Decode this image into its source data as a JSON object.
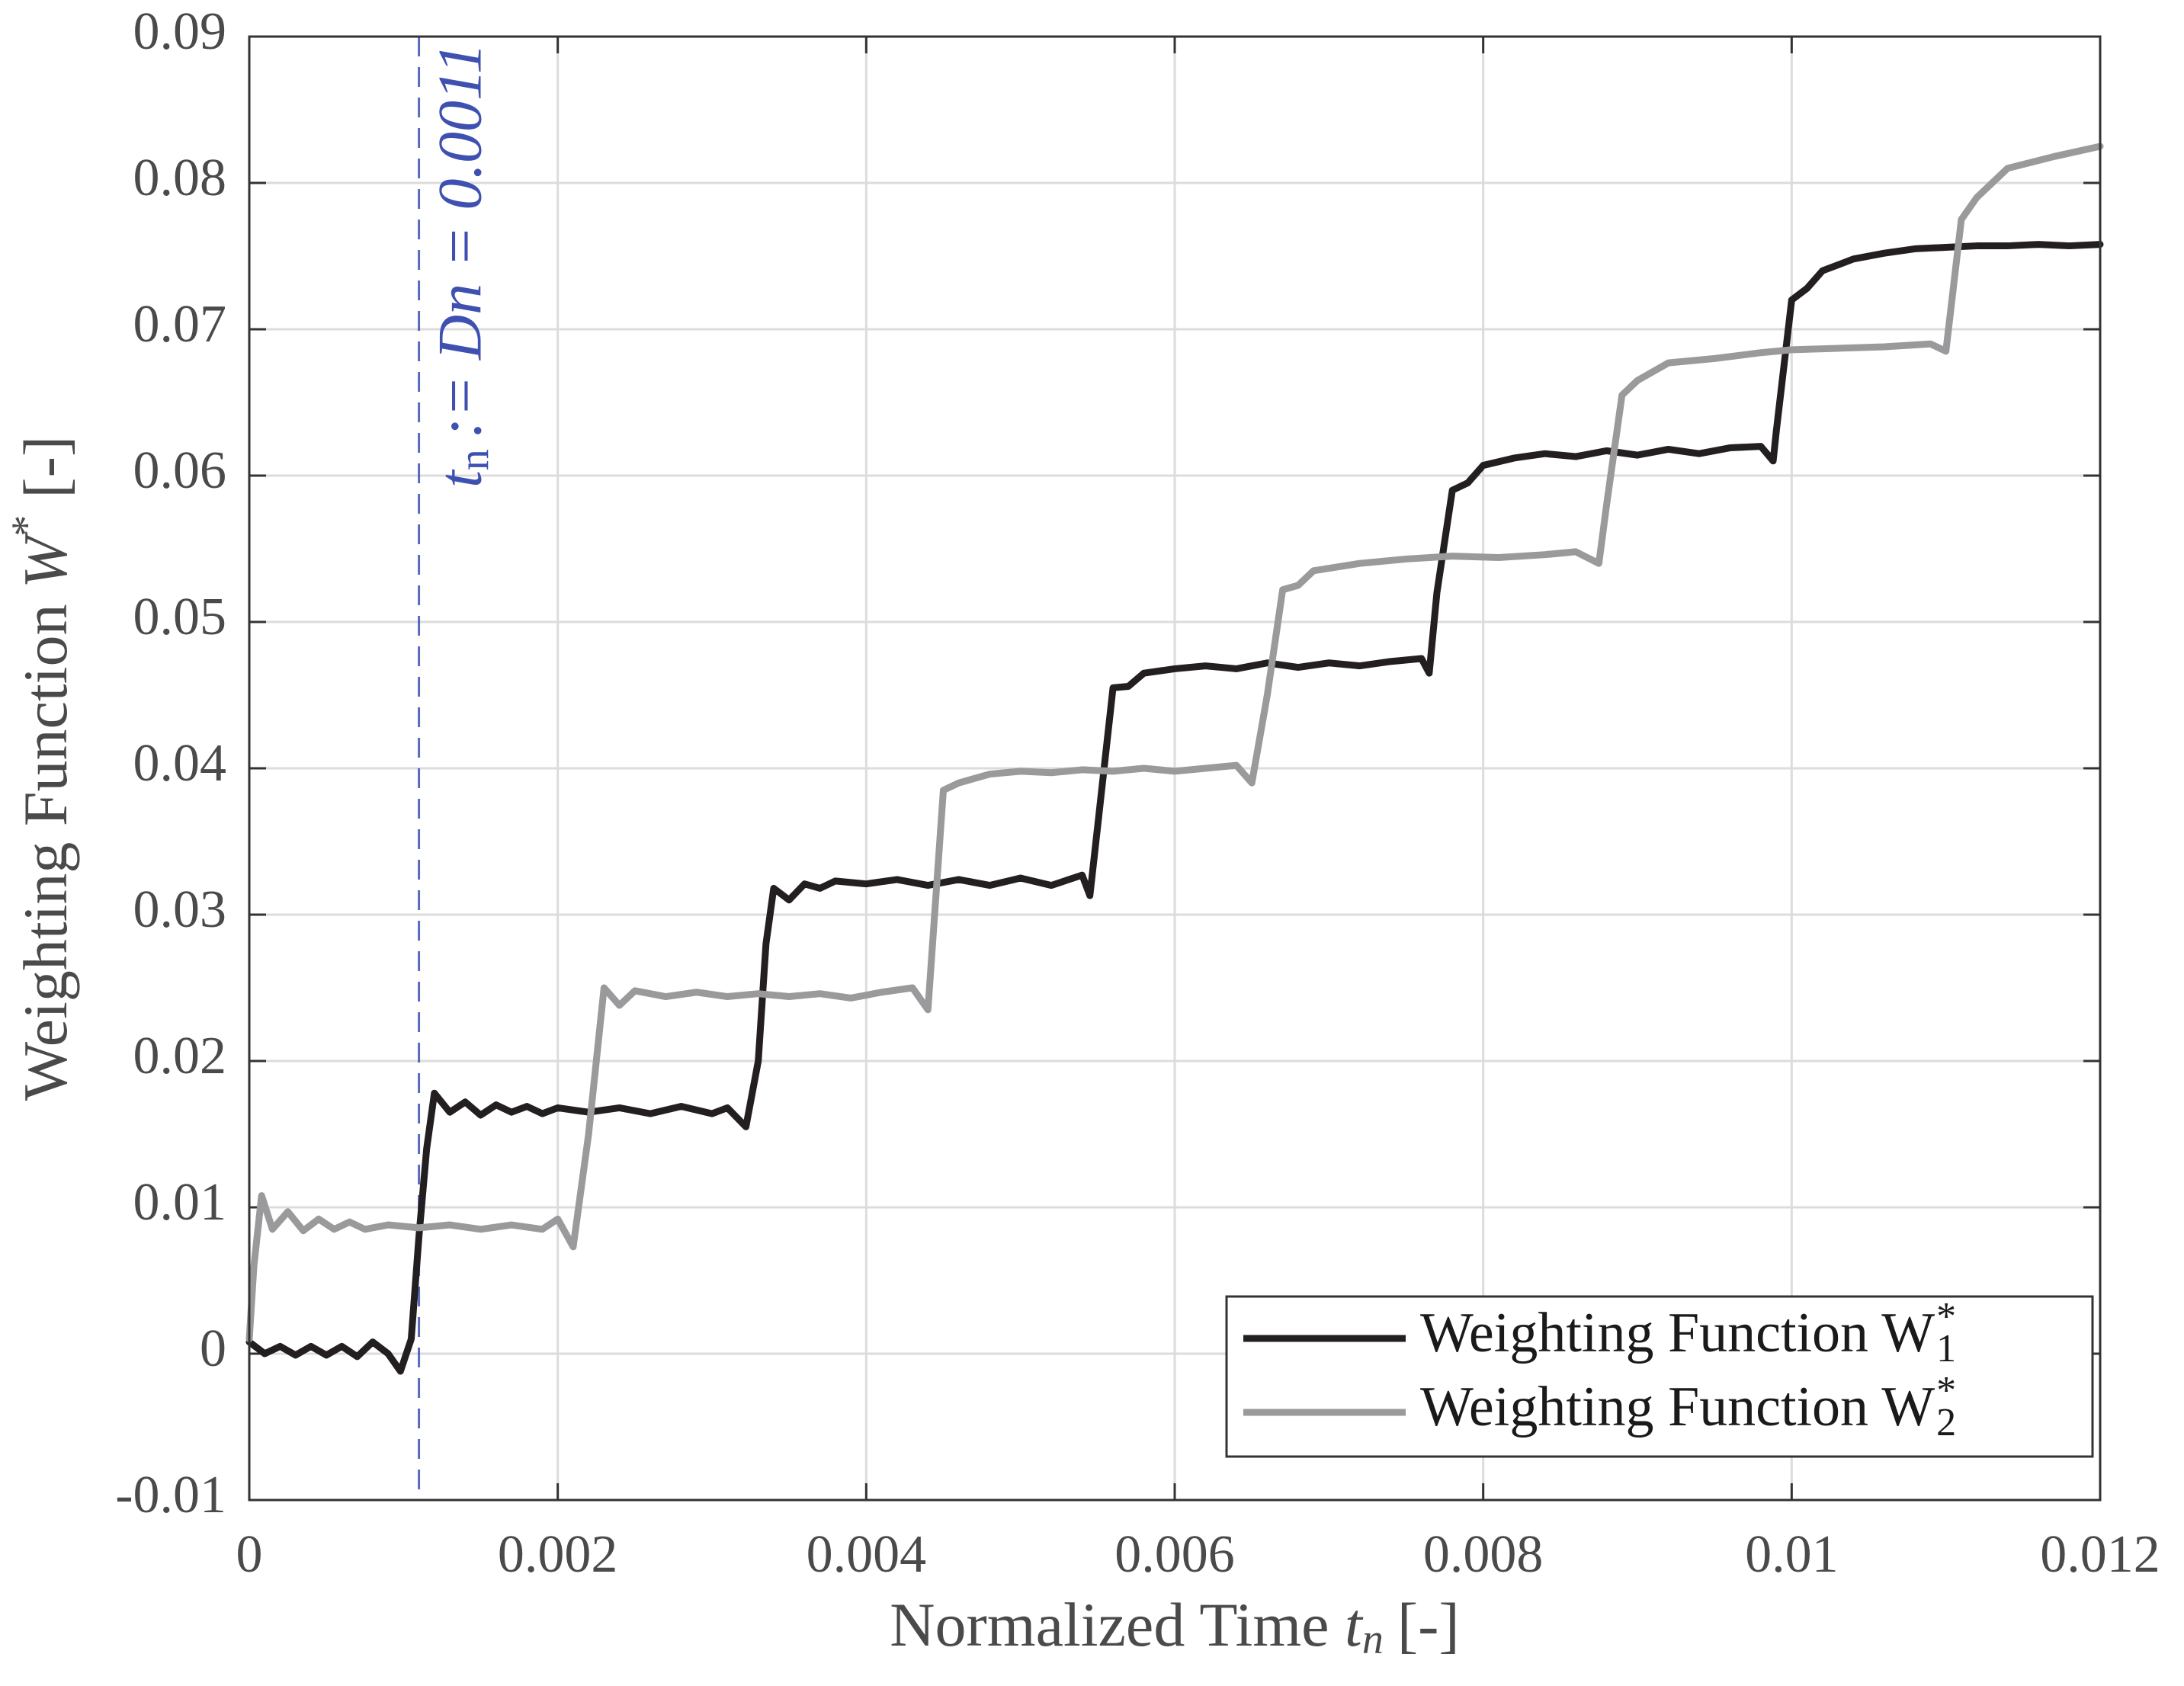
{
  "chart_data": {
    "type": "line",
    "xlabel": "Normalized Time",
    "xlabel_symbol": "t",
    "xlabel_sub": "n",
    "xlabel_unit": "[-]",
    "ylabel": "Weighting Function",
    "ylabel_symbol": "W",
    "ylabel_sup": "*",
    "ylabel_unit": "[-]",
    "xlim": [
      0,
      0.012
    ],
    "xticks": [
      0,
      0.002,
      0.004,
      0.006,
      0.008,
      0.01,
      0.012
    ],
    "ylim": [
      -0.01,
      0.09
    ],
    "yticks": [
      -0.01,
      0,
      0.01,
      0.02,
      0.03,
      0.04,
      0.05,
      0.06,
      0.07,
      0.08,
      0.09
    ],
    "grid": true,
    "legend": "lower right",
    "annotation": {
      "x": 0.0011,
      "color": "#3f51b0",
      "symbol": "t",
      "sub": "n",
      "text": ":= Dn = 0.0011"
    },
    "series": [
      {
        "name": "Weighting Function W",
        "name_sub": "1",
        "name_sup": "*",
        "color": "#231f20",
        "x": [
          0,
          0.0001,
          0.0002,
          0.0003,
          0.0004,
          0.0005,
          0.0006,
          0.0007,
          0.0008,
          0.0009,
          0.00098,
          0.00105,
          0.0011,
          0.00115,
          0.0012,
          0.0013,
          0.0014,
          0.0015,
          0.0016,
          0.0017,
          0.0018,
          0.0019,
          0.002,
          0.0022,
          0.0024,
          0.0026,
          0.0028,
          0.003,
          0.0031,
          0.00322,
          0.0033,
          0.00335,
          0.0034,
          0.0035,
          0.0036,
          0.0037,
          0.0038,
          0.004,
          0.0042,
          0.0044,
          0.0046,
          0.0048,
          0.005,
          0.0052,
          0.0054,
          0.00545,
          0.0055,
          0.0056,
          0.0057,
          0.0058,
          0.006,
          0.0062,
          0.0064,
          0.0066,
          0.0068,
          0.007,
          0.0072,
          0.0074,
          0.0076,
          0.00765,
          0.0077,
          0.0078,
          0.0079,
          0.008,
          0.0082,
          0.0084,
          0.0086,
          0.0088,
          0.009,
          0.0092,
          0.0094,
          0.0096,
          0.0098,
          0.00988,
          0.0099,
          0.01,
          0.0101,
          0.0102,
          0.0104,
          0.0106,
          0.0108,
          0.011,
          0.0112,
          0.0114,
          0.0116,
          0.0118,
          0.012
        ],
        "values": [
          0.0008,
          0.0,
          0.0005,
          -0.0001,
          0.0005,
          -0.0001,
          0.0005,
          -0.0002,
          0.0008,
          0.0,
          -0.0012,
          0.001,
          0.008,
          0.014,
          0.0178,
          0.0165,
          0.0172,
          0.0163,
          0.017,
          0.0165,
          0.0169,
          0.0164,
          0.0168,
          0.0165,
          0.0168,
          0.0164,
          0.0169,
          0.0164,
          0.0168,
          0.0155,
          0.02,
          0.028,
          0.0318,
          0.031,
          0.0321,
          0.0318,
          0.0323,
          0.0321,
          0.0324,
          0.032,
          0.0324,
          0.032,
          0.0325,
          0.032,
          0.0327,
          0.0313,
          0.036,
          0.0455,
          0.0456,
          0.0465,
          0.0468,
          0.047,
          0.0468,
          0.0472,
          0.0469,
          0.0472,
          0.047,
          0.0473,
          0.0475,
          0.0465,
          0.052,
          0.059,
          0.0595,
          0.0607,
          0.0612,
          0.0615,
          0.0613,
          0.0617,
          0.0614,
          0.0618,
          0.0615,
          0.0619,
          0.062,
          0.061,
          0.063,
          0.072,
          0.0728,
          0.074,
          0.0748,
          0.0752,
          0.0755,
          0.0756,
          0.0757,
          0.0757,
          0.0758,
          0.0757,
          0.0758
        ]
      },
      {
        "name": "Weighting Function W",
        "name_sub": "2",
        "name_sup": "*",
        "color": "#9a9a9c",
        "x": [
          0,
          3e-05,
          8e-05,
          0.00015,
          0.00025,
          0.00035,
          0.00045,
          0.00055,
          0.00065,
          0.00075,
          0.0009,
          0.0011,
          0.0013,
          0.0015,
          0.0017,
          0.0019,
          0.002,
          0.0021,
          0.0022,
          0.0023,
          0.0024,
          0.0025,
          0.0027,
          0.0029,
          0.0031,
          0.0033,
          0.0035,
          0.0037,
          0.0039,
          0.0041,
          0.0043,
          0.0044,
          0.0045,
          0.0046,
          0.0048,
          0.005,
          0.0052,
          0.0054,
          0.0056,
          0.0058,
          0.006,
          0.0062,
          0.0064,
          0.0065,
          0.0066,
          0.0067,
          0.0068,
          0.0069,
          0.0072,
          0.0075,
          0.0078,
          0.0081,
          0.0084,
          0.0086,
          0.00875,
          0.0088,
          0.0089,
          0.009,
          0.0092,
          0.0095,
          0.0098,
          0.01,
          0.0103,
          0.0106,
          0.0109,
          0.011,
          0.0111,
          0.0112,
          0.0114,
          0.0117,
          0.012
        ],
        "values": [
          0.001,
          0.006,
          0.0108,
          0.0085,
          0.0097,
          0.0084,
          0.0092,
          0.0085,
          0.009,
          0.0085,
          0.0088,
          0.0086,
          0.0088,
          0.0085,
          0.0088,
          0.0085,
          0.0092,
          0.0073,
          0.015,
          0.025,
          0.0238,
          0.0248,
          0.0244,
          0.0247,
          0.0244,
          0.0246,
          0.0244,
          0.0246,
          0.0243,
          0.0247,
          0.025,
          0.0235,
          0.0385,
          0.039,
          0.0396,
          0.0398,
          0.0397,
          0.0399,
          0.0398,
          0.04,
          0.0398,
          0.04,
          0.0402,
          0.039,
          0.045,
          0.0522,
          0.0525,
          0.0535,
          0.054,
          0.0543,
          0.0545,
          0.0544,
          0.0546,
          0.0548,
          0.054,
          0.058,
          0.0655,
          0.0665,
          0.0677,
          0.068,
          0.0684,
          0.0686,
          0.0687,
          0.0688,
          0.069,
          0.0685,
          0.0775,
          0.079,
          0.081,
          0.0818,
          0.0825
        ]
      }
    ]
  }
}
